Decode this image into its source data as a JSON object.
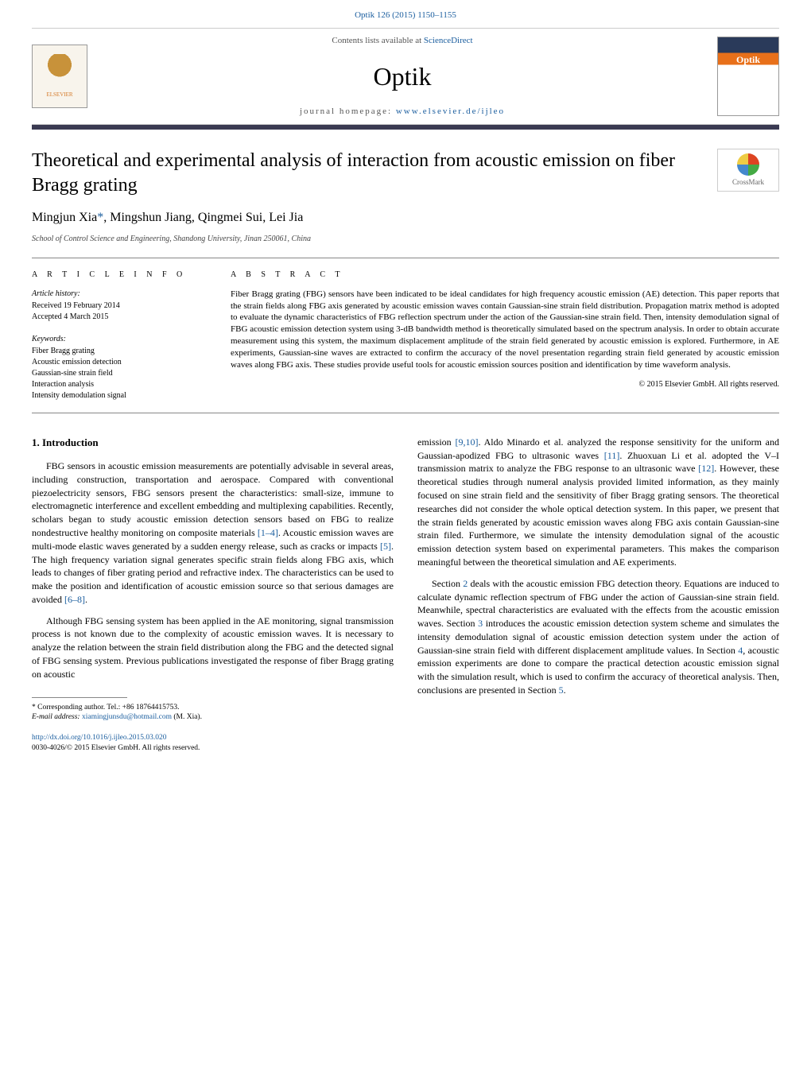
{
  "top_citation": {
    "prefix": "",
    "link": "Optik 126 (2015) 1150–1155"
  },
  "header": {
    "contents_prefix": "Contents lists available at ",
    "contents_link": "ScienceDirect",
    "journal": "Optik",
    "homepage_prefix": "journal homepage: ",
    "homepage_link": "www.elsevier.de/ijleo",
    "publisher_name": "ELSEVIER"
  },
  "article": {
    "title": "Theoretical and experimental analysis of interaction from acoustic emission on fiber Bragg grating",
    "crossmark_label": "CrossMark",
    "authors_html": "Mingjun Xia",
    "author_corr_mark": "*",
    "authors_rest": ", Mingshun Jiang, Qingmei Sui, Lei Jia",
    "affiliation": "School of Control Science and Engineering, Shandong University, Jinan 250061, China"
  },
  "info": {
    "heading": "a r t i c l e   i n f o",
    "history_head": "Article history:",
    "received": "Received 19 February 2014",
    "accepted": "Accepted 4 March 2015",
    "keywords_head": "Keywords:",
    "keywords": [
      "Fiber Bragg grating",
      "Acoustic emission detection",
      "Gaussian-sine strain field",
      "Interaction analysis",
      "Intensity demodulation signal"
    ]
  },
  "abstract": {
    "heading": "a b s t r a c t",
    "text": "Fiber Bragg grating (FBG) sensors have been indicated to be ideal candidates for high frequency acoustic emission (AE) detection. This paper reports that the strain fields along FBG axis generated by acoustic emission waves contain Gaussian-sine strain field distribution. Propagation matrix method is adopted to evaluate the dynamic characteristics of FBG reflection spectrum under the action of the Gaussian-sine strain field. Then, intensity demodulation signal of FBG acoustic emission detection system using 3-dB bandwidth method is theoretically simulated based on the spectrum analysis. In order to obtain accurate measurement using this system, the maximum displacement amplitude of the strain field generated by acoustic emission is explored. Furthermore, in AE experiments, Gaussian-sine waves are extracted to confirm the accuracy of the novel presentation regarding strain field generated by acoustic emission waves along FBG axis. These studies provide useful tools for acoustic emission sources position and identification by time waveform analysis.",
    "copyright": "© 2015 Elsevier GmbH. All rights reserved."
  },
  "body": {
    "section1_heading": "1. Introduction",
    "col1_p1": "FBG sensors in acoustic emission measurements are potentially advisable in several areas, including construction, transportation and aerospace. Compared with conventional piezoelectricity sensors, FBG sensors present the characteristics: small-size, immune to electromagnetic interference and excellent embedding and multiplexing capabilities. Recently, scholars began to study acoustic emission detection sensors based on FBG to realize nondestructive healthy monitoring on composite materials ",
    "col1_p1_ref1": "[1–4]",
    "col1_p1b": ". Acoustic emission waves are multi-mode elastic waves generated by a sudden energy release, such as cracks or impacts ",
    "col1_p1_ref2": "[5]",
    "col1_p1c": ". The high frequency variation signal generates specific strain fields along FBG axis, which leads to changes of fiber grating period and refractive index. The characteristics can be used to make the position and identification of acoustic emission source so that serious damages are avoided ",
    "col1_p1_ref3": "[6–8]",
    "col1_p1d": ".",
    "col1_p2": "Although FBG sensing system has been applied in the AE monitoring, signal transmission process is not known due to the complexity of acoustic emission waves. It is necessary to analyze the relation between the strain field distribution along the FBG and the detected signal of FBG sensing system. Previous publications investigated the response of fiber Bragg grating on acoustic",
    "col2_p1a": "emission ",
    "col2_p1_ref1": "[9,10]",
    "col2_p1b": ". Aldo Minardo et al. analyzed the response sensitivity for the uniform and Gaussian-apodized FBG to ultrasonic waves ",
    "col2_p1_ref2": "[11]",
    "col2_p1c": ". Zhuoxuan Li et al. adopted the V–I transmission matrix to analyze the FBG response to an ultrasonic wave ",
    "col2_p1_ref3": "[12]",
    "col2_p1d": ". However, these theoretical studies through numeral analysis provided limited information, as they mainly focused on sine strain field and the sensitivity of fiber Bragg grating sensors. The theoretical researches did not consider the whole optical detection system. In this paper, we present that the strain fields generated by acoustic emission waves along FBG axis contain Gaussian-sine strain filed. Furthermore, we simulate the intensity demodulation signal of the acoustic emission detection system based on experimental parameters. This makes the comparison meaningful between the theoretical simulation and AE experiments.",
    "col2_p2a": "Section ",
    "col2_p2_ref1": "2",
    "col2_p2b": " deals with the acoustic emission FBG detection theory. Equations are induced to calculate dynamic reflection spectrum of FBG under the action of Gaussian-sine strain field. Meanwhile, spectral characteristics are evaluated with the effects from the acoustic emission waves. Section ",
    "col2_p2_ref2": "3",
    "col2_p2c": " introduces the acoustic emission detection system scheme and simulates the intensity demodulation signal of acoustic emission detection system under the action of Gaussian-sine strain field with different displacement amplitude values. In Section ",
    "col2_p2_ref3": "4",
    "col2_p2d": ", acoustic emission experiments are done to compare the practical detection acoustic emission signal with the simulation result, which is used to confirm the accuracy of theoretical analysis. Then, conclusions are presented in Section ",
    "col2_p2_ref4": "5",
    "col2_p2e": "."
  },
  "footnote": {
    "corr": "* Corresponding author. Tel.: +86 18764415753.",
    "email_label": "E-mail address: ",
    "email": "xiamingjunsdu@hotmail.com",
    "email_suffix": " (M. Xia)."
  },
  "doi": {
    "link": "http://dx.doi.org/10.1016/j.ijleo.2015.03.020",
    "issn": "0030-4026/© 2015 Elsevier GmbH. All rights reserved."
  },
  "colors": {
    "link": "#1a5d9e",
    "rule": "#3a3a52",
    "elsevier": "#d57a2a"
  }
}
